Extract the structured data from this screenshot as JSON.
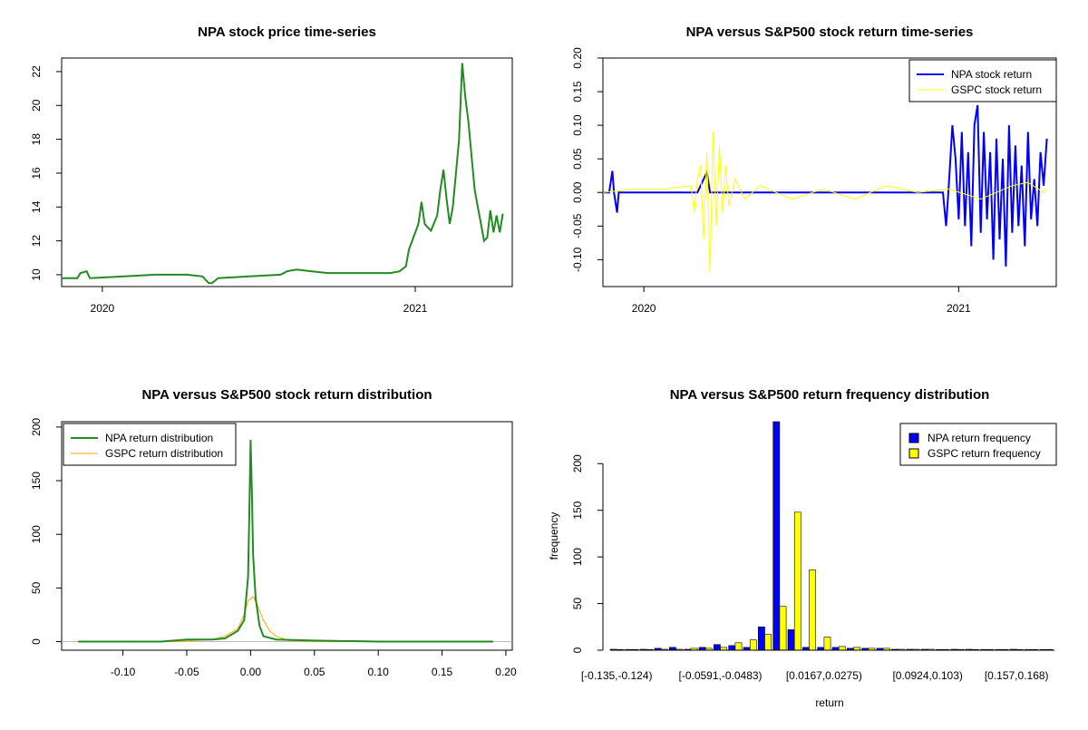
{
  "chart_data": [
    {
      "type": "line",
      "title": "NPA stock price time-series",
      "xlabel": "",
      "ylabel": "",
      "x_ticks": [
        "2020",
        "2021"
      ],
      "y_ticks": [
        "10",
        "12",
        "14",
        "16",
        "18",
        "20",
        "22"
      ],
      "ylim": [
        9.3,
        22.8
      ],
      "xlim": [
        0.0,
        1.44
      ],
      "x_tick_values": [
        0.13,
        1.13
      ],
      "series": [
        {
          "name": "NPA",
          "color": "#228B22",
          "points": [
            [
              0.0,
              9.8
            ],
            [
              0.05,
              9.8
            ],
            [
              0.06,
              10.1
            ],
            [
              0.08,
              10.2
            ],
            [
              0.09,
              9.8
            ],
            [
              0.2,
              9.9
            ],
            [
              0.3,
              10.0
            ],
            [
              0.4,
              10.0
            ],
            [
              0.45,
              9.9
            ],
            [
              0.46,
              9.7
            ],
            [
              0.47,
              9.5
            ],
            [
              0.48,
              9.5
            ],
            [
              0.5,
              9.8
            ],
            [
              0.6,
              9.9
            ],
            [
              0.7,
              10.0
            ],
            [
              0.72,
              10.2
            ],
            [
              0.75,
              10.3
            ],
            [
              0.8,
              10.2
            ],
            [
              0.85,
              10.1
            ],
            [
              0.9,
              10.1
            ],
            [
              0.95,
              10.1
            ],
            [
              1.0,
              10.1
            ],
            [
              1.05,
              10.1
            ],
            [
              1.08,
              10.2
            ],
            [
              1.1,
              10.5
            ],
            [
              1.11,
              11.5
            ],
            [
              1.12,
              12.0
            ],
            [
              1.14,
              13.0
            ],
            [
              1.15,
              14.3
            ],
            [
              1.16,
              13.0
            ],
            [
              1.17,
              12.8
            ],
            [
              1.18,
              12.6
            ],
            [
              1.2,
              13.5
            ],
            [
              1.21,
              15.0
            ],
            [
              1.22,
              16.2
            ],
            [
              1.23,
              14.5
            ],
            [
              1.24,
              13.0
            ],
            [
              1.25,
              14.0
            ],
            [
              1.26,
              16.0
            ],
            [
              1.27,
              18.0
            ],
            [
              1.28,
              22.5
            ],
            [
              1.29,
              20.5
            ],
            [
              1.3,
              19.0
            ],
            [
              1.31,
              17.0
            ],
            [
              1.32,
              15.0
            ],
            [
              1.33,
              14.0
            ],
            [
              1.34,
              13.0
            ],
            [
              1.35,
              12.0
            ],
            [
              1.36,
              12.2
            ],
            [
              1.37,
              13.8
            ],
            [
              1.38,
              12.5
            ],
            [
              1.39,
              13.5
            ],
            [
              1.4,
              12.5
            ],
            [
              1.41,
              13.6
            ]
          ]
        }
      ]
    },
    {
      "type": "line",
      "title": "NPA versus S&P500 stock return time-series",
      "xlabel": "",
      "ylabel": "",
      "x_ticks": [
        "2020",
        "2021"
      ],
      "y_ticks": [
        "-0.10",
        "-0.05",
        "0.00",
        "0.05",
        "0.10",
        "0.15",
        "0.20"
      ],
      "ylim": [
        -0.14,
        0.2
      ],
      "xlim": [
        0.0,
        1.44
      ],
      "x_tick_values": [
        0.13,
        1.13
      ],
      "legend": {
        "position": "top-right",
        "entries": [
          "NPA stock return",
          "GSPC stock return"
        ]
      },
      "series": [
        {
          "name": "NPA stock return",
          "color": "#0000FF",
          "points": [
            [
              0.0,
              0.0
            ],
            [
              0.02,
              0.0
            ],
            [
              0.03,
              0.032
            ],
            [
              0.035,
              0.0
            ],
            [
              0.045,
              -0.03
            ],
            [
              0.05,
              0.0
            ],
            [
              0.1,
              0.0
            ],
            [
              0.2,
              0.0
            ],
            [
              0.3,
              0.0
            ],
            [
              0.33,
              0.03
            ],
            [
              0.34,
              0.0
            ],
            [
              0.4,
              0.0
            ],
            [
              0.5,
              0.0
            ],
            [
              0.6,
              0.0
            ],
            [
              0.7,
              0.0
            ],
            [
              0.8,
              0.0
            ],
            [
              0.9,
              0.0
            ],
            [
              1.0,
              0.0
            ],
            [
              1.05,
              0.0
            ],
            [
              1.08,
              0.0
            ],
            [
              1.09,
              -0.05
            ],
            [
              1.1,
              0.02
            ],
            [
              1.11,
              0.1
            ],
            [
              1.12,
              0.05
            ],
            [
              1.13,
              -0.04
            ],
            [
              1.14,
              0.09
            ],
            [
              1.15,
              -0.05
            ],
            [
              1.16,
              0.06
            ],
            [
              1.17,
              -0.08
            ],
            [
              1.18,
              0.1
            ],
            [
              1.19,
              0.13
            ],
            [
              1.2,
              -0.06
            ],
            [
              1.21,
              0.09
            ],
            [
              1.22,
              -0.04
            ],
            [
              1.23,
              0.06
            ],
            [
              1.24,
              -0.1
            ],
            [
              1.25,
              0.08
            ],
            [
              1.26,
              -0.07
            ],
            [
              1.27,
              0.05
            ],
            [
              1.28,
              -0.11
            ],
            [
              1.29,
              0.1
            ],
            [
              1.3,
              -0.06
            ],
            [
              1.31,
              0.07
            ],
            [
              1.32,
              -0.05
            ],
            [
              1.33,
              0.04
            ],
            [
              1.34,
              -0.08
            ],
            [
              1.35,
              0.09
            ],
            [
              1.36,
              -0.04
            ],
            [
              1.37,
              0.02
            ],
            [
              1.38,
              -0.05
            ],
            [
              1.39,
              0.06
            ],
            [
              1.4,
              0.01
            ],
            [
              1.41,
              0.08
            ]
          ]
        },
        {
          "name": "GSPC stock return",
          "color": "#FFFF00",
          "points": [
            [
              0.0,
              0.0
            ],
            [
              0.1,
              0.005
            ],
            [
              0.2,
              0.005
            ],
            [
              0.28,
              0.01
            ],
            [
              0.29,
              -0.03
            ],
            [
              0.3,
              0.02
            ],
            [
              0.31,
              0.04
            ],
            [
              0.32,
              -0.07
            ],
            [
              0.33,
              0.06
            ],
            [
              0.34,
              -0.12
            ],
            [
              0.35,
              0.09
            ],
            [
              0.36,
              -0.05
            ],
            [
              0.37,
              0.07
            ],
            [
              0.38,
              -0.03
            ],
            [
              0.39,
              0.04
            ],
            [
              0.4,
              -0.02
            ],
            [
              0.42,
              0.02
            ],
            [
              0.45,
              -0.01
            ],
            [
              0.5,
              0.01
            ],
            [
              0.6,
              -0.01
            ],
            [
              0.7,
              0.005
            ],
            [
              0.8,
              -0.01
            ],
            [
              0.9,
              0.01
            ],
            [
              1.0,
              0.0
            ],
            [
              1.1,
              0.005
            ],
            [
              1.2,
              -0.01
            ],
            [
              1.3,
              0.01
            ],
            [
              1.35,
              0.015
            ],
            [
              1.4,
              0.0
            ],
            [
              1.41,
              0.005
            ]
          ]
        }
      ]
    },
    {
      "type": "line",
      "title": "NPA versus S&P500 stock return distribution",
      "xlabel": "",
      "ylabel": "",
      "x_ticks": [
        "-0.10",
        "-0.05",
        "0.00",
        "0.05",
        "0.10",
        "0.15",
        "0.20"
      ],
      "y_ticks": [
        "0",
        "50",
        "100",
        "150",
        "200"
      ],
      "xlim": [
        -0.148,
        0.205
      ],
      "ylim": [
        -8,
        205
      ],
      "legend": {
        "position": "top-left",
        "entries": [
          "NPA return distribution",
          "GSPC return distribution"
        ]
      },
      "series": [
        {
          "name": "NPA return distribution",
          "color": "#228B22",
          "points": [
            [
              -0.135,
              0.0
            ],
            [
              -0.1,
              0.0
            ],
            [
              -0.07,
              0.0
            ],
            [
              -0.05,
              2.0
            ],
            [
              -0.03,
              2.0
            ],
            [
              -0.02,
              3.0
            ],
            [
              -0.01,
              10.0
            ],
            [
              -0.005,
              20.0
            ],
            [
              -0.002,
              60.0
            ],
            [
              -0.001,
              120.0
            ],
            [
              0.0,
              188.0
            ],
            [
              0.001,
              140.0
            ],
            [
              0.002,
              80.0
            ],
            [
              0.004,
              40.0
            ],
            [
              0.007,
              15.0
            ],
            [
              0.01,
              5.0
            ],
            [
              0.02,
              2.0
            ],
            [
              0.05,
              1.0
            ],
            [
              0.1,
              0.0
            ],
            [
              0.15,
              0.0
            ],
            [
              0.19,
              0.0
            ]
          ]
        },
        {
          "name": "GSPC return distribution",
          "color": "#FFA500",
          "points": [
            [
              -0.135,
              0.0
            ],
            [
              -0.06,
              0.0
            ],
            [
              -0.03,
              2.0
            ],
            [
              -0.02,
              5.0
            ],
            [
              -0.01,
              12.0
            ],
            [
              -0.005,
              25.0
            ],
            [
              -0.002,
              38.0
            ],
            [
              0.002,
              42.0
            ],
            [
              0.005,
              35.0
            ],
            [
              0.01,
              20.0
            ],
            [
              0.015,
              10.0
            ],
            [
              0.02,
              5.0
            ],
            [
              0.03,
              1.0
            ],
            [
              0.06,
              0.0
            ],
            [
              0.19,
              0.0
            ]
          ]
        }
      ]
    },
    {
      "type": "bar",
      "title": "NPA versus S&P500 return frequency distribution",
      "xlabel": "return",
      "ylabel": "frequency",
      "ylim": [
        0,
        245
      ],
      "y_ticks": [
        "0",
        "50",
        "100",
        "150",
        "200"
      ],
      "x_tick_labels": [
        "[-0.135,-0.124)",
        "[-0.0591,-0.0483)",
        "[0.0167,0.0275)",
        "[0.0924,0.103)",
        "[0.157,0.168)"
      ],
      "x_tick_indices": [
        0,
        7,
        14,
        21,
        27
      ],
      "legend": {
        "position": "top-right",
        "entries": [
          "NPA return frequency",
          "GSPC return frequency"
        ]
      },
      "categories_count": 30,
      "series": [
        {
          "name": "NPA return frequency",
          "color": "#0000FF",
          "values": [
            1,
            0,
            1,
            2,
            3,
            1,
            3,
            6,
            5,
            3,
            25,
            245,
            22,
            3,
            3,
            3,
            2,
            2,
            2,
            1,
            1,
            1,
            0,
            1,
            1,
            0,
            0,
            1,
            0,
            0
          ]
        },
        {
          "name": "GSPC return frequency",
          "color": "#FFFF00",
          "values": [
            0,
            0,
            0,
            1,
            1,
            2,
            2,
            3,
            8,
            11,
            17,
            47,
            148,
            86,
            14,
            4,
            3,
            2,
            2,
            1,
            1,
            1,
            0,
            0,
            0,
            0,
            0,
            0,
            0,
            0
          ]
        }
      ]
    }
  ]
}
